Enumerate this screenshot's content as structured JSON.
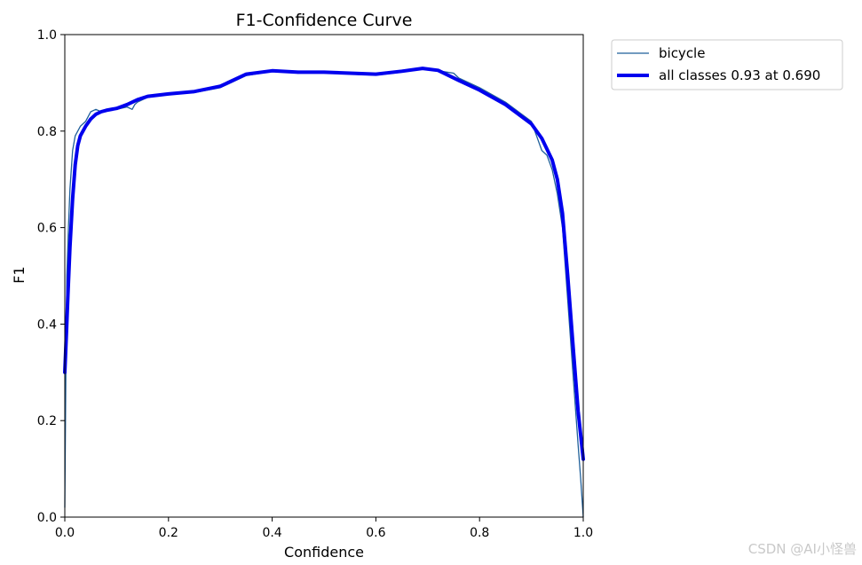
{
  "chart_data": {
    "type": "line",
    "title": "F1-Confidence Curve",
    "xlabel": "Confidence",
    "ylabel": "F1",
    "xlim": [
      0.0,
      1.0
    ],
    "ylim": [
      0.0,
      1.0
    ],
    "xticks": [
      "0.0",
      "0.2",
      "0.4",
      "0.6",
      "0.8",
      "1.0"
    ],
    "yticks": [
      "0.0",
      "0.2",
      "0.4",
      "0.6",
      "0.8",
      "1.0"
    ],
    "grid": false,
    "legend_position": "outside-top-right",
    "series": [
      {
        "name": "bicycle",
        "color": "#1f5f9a",
        "x": [
          0.0,
          0.002,
          0.004,
          0.007,
          0.01,
          0.015,
          0.02,
          0.025,
          0.03,
          0.04,
          0.05,
          0.06,
          0.07,
          0.08,
          0.1,
          0.12,
          0.13,
          0.135,
          0.14,
          0.16,
          0.2,
          0.25,
          0.3,
          0.35,
          0.4,
          0.45,
          0.5,
          0.55,
          0.6,
          0.65,
          0.69,
          0.72,
          0.75,
          0.76,
          0.8,
          0.85,
          0.9,
          0.91,
          0.92,
          0.93,
          0.94,
          0.95,
          0.96,
          0.97,
          0.98,
          0.99,
          0.995,
          1.0
        ],
        "y": [
          0.02,
          0.3,
          0.5,
          0.6,
          0.68,
          0.76,
          0.79,
          0.8,
          0.81,
          0.82,
          0.84,
          0.845,
          0.84,
          0.845,
          0.845,
          0.85,
          0.845,
          0.855,
          0.86,
          0.87,
          0.876,
          0.88,
          0.89,
          0.915,
          0.924,
          0.92,
          0.923,
          0.918,
          0.916,
          0.922,
          0.93,
          0.925,
          0.92,
          0.91,
          0.89,
          0.86,
          0.82,
          0.79,
          0.76,
          0.75,
          0.72,
          0.67,
          0.6,
          0.45,
          0.3,
          0.15,
          0.08,
          0.0
        ]
      },
      {
        "name": "all classes 0.93 at 0.690",
        "color": "#0000ee",
        "x": [
          0.0,
          0.003,
          0.006,
          0.01,
          0.015,
          0.02,
          0.025,
          0.03,
          0.04,
          0.05,
          0.06,
          0.07,
          0.08,
          0.1,
          0.12,
          0.14,
          0.16,
          0.2,
          0.25,
          0.3,
          0.35,
          0.4,
          0.45,
          0.5,
          0.55,
          0.6,
          0.65,
          0.69,
          0.72,
          0.76,
          0.8,
          0.85,
          0.9,
          0.92,
          0.94,
          0.95,
          0.96,
          0.97,
          0.98,
          0.99,
          1.0
        ],
        "y": [
          0.3,
          0.38,
          0.46,
          0.56,
          0.66,
          0.73,
          0.77,
          0.79,
          0.81,
          0.825,
          0.835,
          0.84,
          0.843,
          0.847,
          0.855,
          0.865,
          0.872,
          0.877,
          0.882,
          0.893,
          0.918,
          0.925,
          0.922,
          0.922,
          0.92,
          0.918,
          0.924,
          0.93,
          0.926,
          0.905,
          0.885,
          0.855,
          0.815,
          0.785,
          0.74,
          0.7,
          0.63,
          0.5,
          0.36,
          0.22,
          0.12
        ]
      }
    ]
  },
  "watermark": "CSDN @AI小怪兽"
}
